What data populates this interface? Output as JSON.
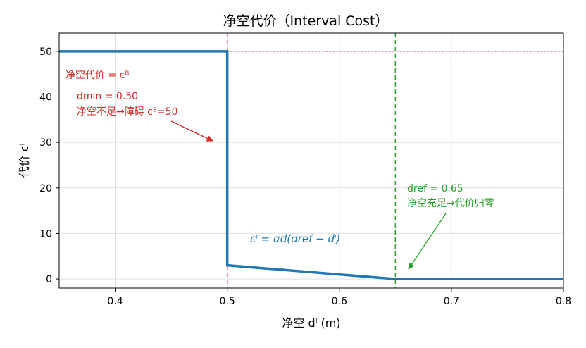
{
  "chart_data": {
    "type": "line",
    "title": "净空代价（Interval Cost）",
    "xlabel": "净空 dˡ (m)",
    "ylabel": "代价 cˡ",
    "xlim": [
      0.35,
      0.8
    ],
    "ylim": [
      -2,
      54
    ],
    "xticks": [
      0.4,
      0.5,
      0.6,
      0.7,
      0.8
    ],
    "xtick_labels": [
      "0.4",
      "0.5",
      "0.6",
      "0.7",
      "0.8"
    ],
    "yticks": [
      0,
      10,
      20,
      30,
      40,
      50
    ],
    "ytick_labels": [
      "0",
      "10",
      "20",
      "30",
      "40",
      "50"
    ],
    "grid": true,
    "series": [
      {
        "color": "#1f77b4",
        "x": [
          0.35,
          0.5,
          0.5,
          0.65,
          0.8
        ],
        "y": [
          50,
          50,
          3,
          0,
          0
        ]
      }
    ],
    "reference_lines": [
      {
        "orientation": "vertical",
        "x": 0.5,
        "color": "#d62728",
        "style": "dashed"
      },
      {
        "orientation": "vertical",
        "x": 0.65,
        "color": "#2ca02c",
        "style": "dashed"
      },
      {
        "orientation": "horizontal",
        "y": 50,
        "x_from": 0.5,
        "color": "#d62728",
        "style": "dotted"
      }
    ],
    "annotations": {
      "cost_label": "净空代价 = cᴮ",
      "dmin_line1": "dmin = 0.50",
      "dmin_line2": "净空不足→障碍 cᴮ=50",
      "dref_line1": "dref = 0.65",
      "dref_line2": "净空充足→代价归零",
      "formula": "cˡ = αd(dref − dˡ)"
    },
    "colors": {
      "main": "#1f77b4",
      "min_line": "#d62728",
      "ref_line": "#2ca02c"
    }
  }
}
